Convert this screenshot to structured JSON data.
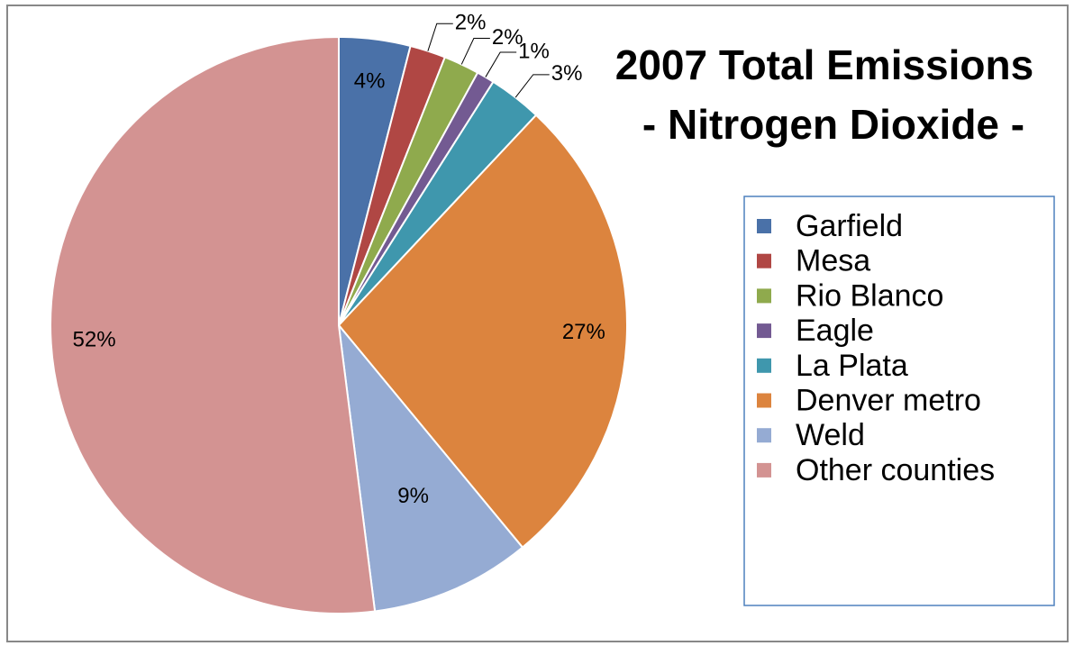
{
  "chart_data": {
    "type": "pie",
    "title": [
      "2007 Total Emissions",
      "- Nitrogen Dioxide -"
    ],
    "categories": [
      "Garfield",
      "Mesa",
      "Rio Blanco",
      "Eagle",
      "La Plata",
      "Denver metro",
      "Weld",
      "Other counties"
    ],
    "values": [
      4,
      2,
      2,
      1,
      3,
      27,
      9,
      52
    ],
    "value_labels": [
      "4%",
      "2%",
      "2%",
      "1%",
      "3%",
      "27%",
      "9%",
      "52%"
    ],
    "colors": [
      "#4a71a8",
      "#b04744",
      "#8faa4d",
      "#735a92",
      "#3f97ad",
      "#dc843e",
      "#95abd3",
      "#d39392"
    ],
    "legend": "right"
  }
}
